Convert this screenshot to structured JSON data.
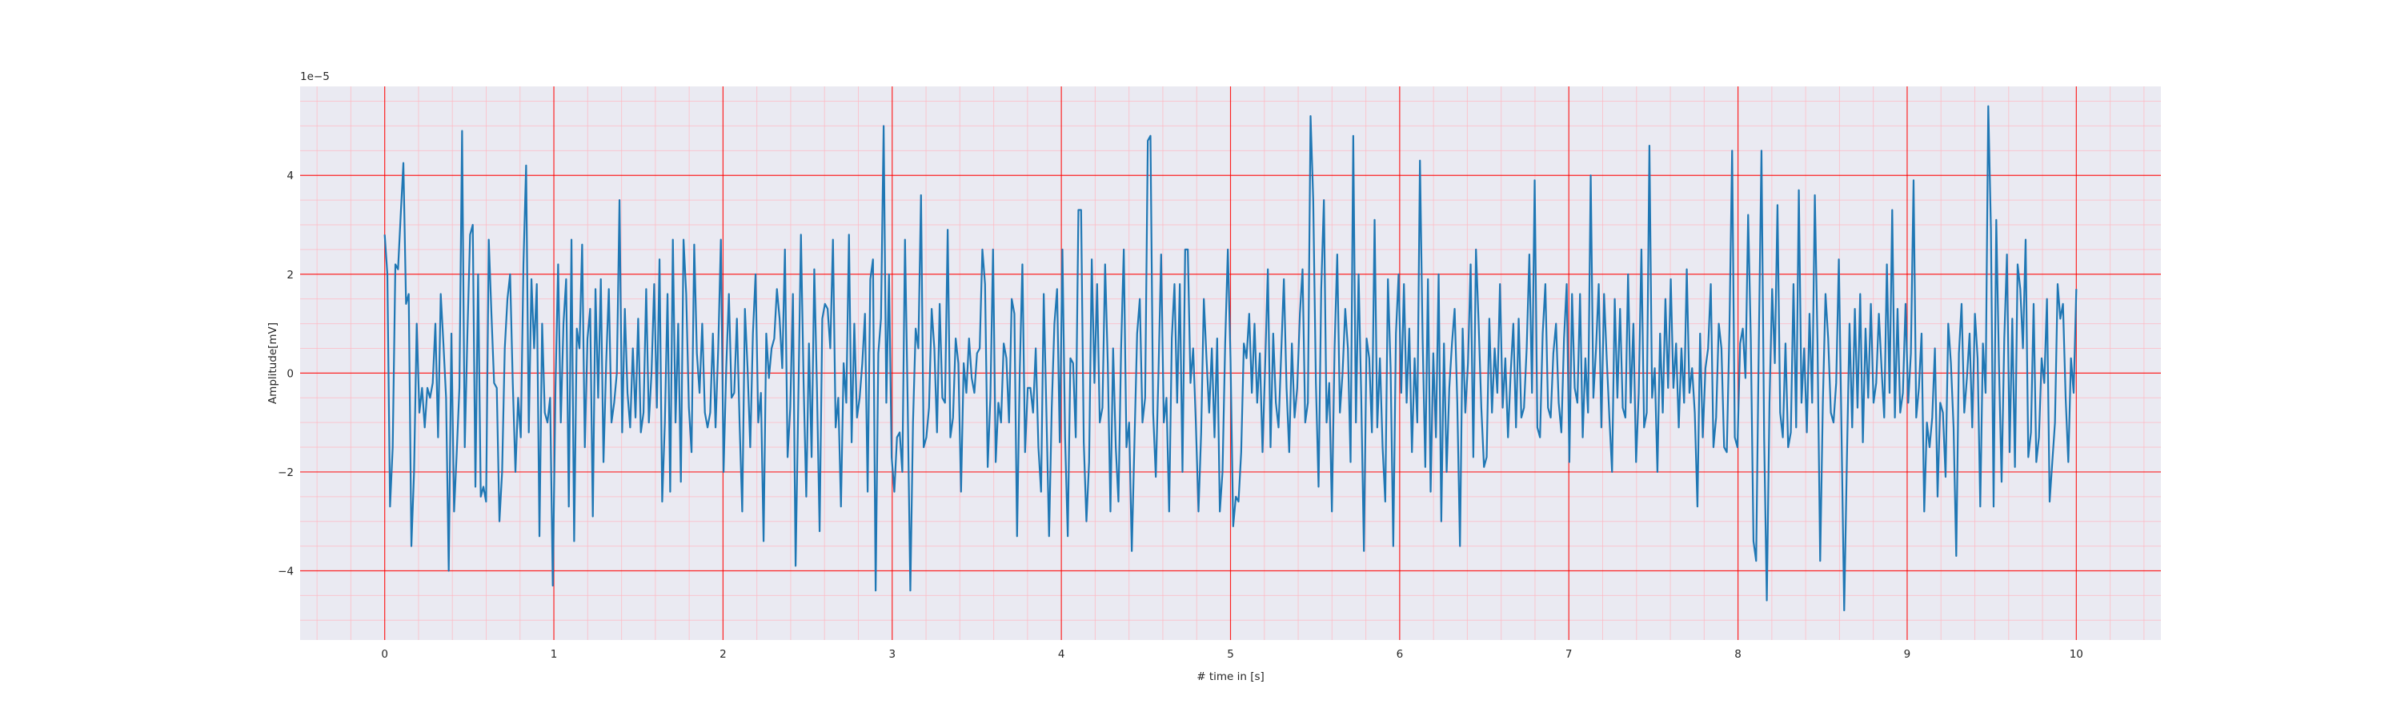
{
  "chart_data": {
    "type": "line",
    "title": "",
    "xlabel": "# time in [s]",
    "ylabel": "Amplitude[mV]",
    "y_scale_factor_label": "1e−5",
    "xlim": [
      -0.5,
      10.5
    ],
    "ylim": [
      -5.4e-05,
      5.8e-05
    ],
    "xticks": [
      0,
      1,
      2,
      3,
      4,
      5,
      6,
      7,
      8,
      9,
      10
    ],
    "xtick_labels": [
      "0",
      "1",
      "2",
      "3",
      "4",
      "5",
      "6",
      "7",
      "8",
      "9",
      "10"
    ],
    "yticks": [
      -4e-05,
      -2e-05,
      0,
      2e-05,
      4e-05
    ],
    "ytick_labels": [
      "−4",
      "−2",
      "0",
      "2",
      "4"
    ],
    "grid": "major and minor",
    "colors": {
      "plot_background": "#eaeaf2",
      "major_grid": "#ff0000",
      "minor_grid": "#ffb6c1",
      "line": "#1f77b4",
      "text": "#262626"
    },
    "series": [
      {
        "values_in_units_of_1e-5": [
          2.8,
          2.0,
          -2.7,
          -1.5,
          2.2,
          2.1,
          3.2,
          4.25,
          1.4,
          1.6,
          -3.5,
          -2.0,
          1.0,
          -0.8,
          -0.3,
          -1.1,
          -0.3,
          -0.5,
          -0.2,
          1.0,
          -1.3,
          1.6,
          0.6,
          -0.5,
          -4.0,
          0.8,
          -2.8,
          -1.6,
          -0.3,
          4.9,
          -1.5,
          0.8,
          2.8,
          3.0,
          -2.3,
          2.0,
          -2.5,
          -2.3,
          -2.6,
          2.7,
          1.2,
          -0.2,
          -0.3,
          -3.0,
          -2.0,
          0.5,
          1.5,
          2.0,
          -0.2,
          -2.0,
          -0.5,
          -1.3,
          2.2,
          4.2,
          -1.2,
          1.9,
          0.5,
          1.8,
          -3.3,
          1.0,
          -0.8,
          -1.0,
          -0.5,
          -4.3,
          -0.3,
          2.2,
          -1.0,
          1.0,
          1.9,
          -2.7,
          2.7,
          -3.4,
          0.9,
          0.5,
          2.6,
          -1.5,
          0.7,
          1.3,
          -2.9,
          1.7,
          -0.5,
          1.9,
          -1.8,
          0.2,
          1.7,
          -1.0,
          -0.6,
          0.0,
          3.5,
          -1.2,
          1.3,
          -0.4,
          -1.1,
          0.5,
          -0.9,
          1.1,
          -1.2,
          -0.8,
          1.7,
          -1.0,
          0.0,
          1.8,
          -0.7,
          2.3,
          -2.6,
          -1.0,
          1.6,
          -2.4,
          2.7,
          -1.0,
          1.0,
          -2.2,
          2.7,
          1.6,
          -0.7,
          -1.6,
          2.6,
          0.4,
          -0.4,
          1.0,
          -0.8,
          -1.1,
          -0.8,
          0.8,
          -1.1,
          0.5,
          2.7,
          -2.0,
          0.1,
          1.6,
          -0.5,
          -0.4,
          1.1,
          -1.0,
          -2.8,
          1.3,
          0.1,
          -1.5,
          0.8,
          2.0,
          -1.0,
          -0.4,
          -3.4,
          0.8,
          -0.1,
          0.5,
          0.7,
          1.7,
          1.1,
          0.1,
          2.5,
          -1.7,
          -0.7,
          1.6,
          -3.9,
          -0.6,
          2.8,
          -0.2,
          -2.5,
          0.6,
          -1.7,
          2.1,
          -0.3,
          -3.2,
          1.1,
          1.4,
          1.3,
          0.5,
          2.7,
          -1.1,
          -0.5,
          -2.7,
          0.2,
          -0.6,
          2.8,
          -1.4,
          1.0,
          -0.9,
          -0.5,
          0.2,
          1.2,
          -2.4,
          1.9,
          2.3,
          -4.4,
          0.4,
          1.1,
          5.0,
          -0.6,
          2.0,
          -1.7,
          -2.4,
          -1.3,
          -1.2,
          -2.0,
          2.7,
          -0.6,
          -4.4,
          -1.0,
          0.9,
          0.5,
          3.6,
          -1.5,
          -1.3,
          -0.7,
          1.3,
          0.5,
          -1.2,
          1.4,
          -0.5,
          -0.6,
          2.9,
          -1.3,
          -0.9,
          0.7,
          0.2,
          -2.4,
          0.2,
          -0.4,
          0.7,
          -0.1,
          -0.4,
          0.4,
          0.5,
          2.5,
          1.8,
          -1.9,
          -0.5,
          2.5,
          -1.8,
          -0.6,
          -1.0,
          0.6,
          0.3,
          -1.0,
          1.5,
          1.2,
          -3.3,
          0.0,
          2.2,
          -1.6,
          -0.3,
          -0.3,
          -0.8,
          0.5,
          -1.5,
          -2.4,
          1.6,
          -0.8,
          -3.3,
          -0.7,
          1.0,
          1.7,
          -1.4,
          2.5,
          -1.3,
          -3.3,
          0.3,
          0.2,
          -1.3,
          3.3,
          3.3,
          -1.4,
          -3.0,
          -1.8,
          2.3,
          -0.2,
          1.8,
          -1.0,
          -0.7,
          2.2,
          0.2,
          -2.8,
          0.5,
          -1.5,
          -2.6,
          0.5,
          2.5,
          -1.5,
          -1.0,
          -3.6,
          -1.4,
          0.8,
          1.5,
          -1.0,
          -0.5,
          4.7,
          4.8,
          -0.8,
          -2.1,
          0.0,
          2.4,
          -1.0,
          -0.5,
          -2.8,
          0.7,
          1.8,
          -0.6,
          1.8,
          -2.0,
          2.5,
          2.5,
          -0.2,
          0.5,
          -1.0,
          -2.8,
          -1.2,
          1.5,
          0.3,
          -0.8,
          0.5,
          -1.3,
          0.7,
          -2.8,
          -2.0,
          0.6,
          2.5,
          0.3,
          -3.1,
          -2.5,
          -2.6,
          -1.6,
          0.6,
          0.3,
          1.2,
          -0.4,
          1.0,
          -0.6,
          0.4,
          -1.6,
          0.2,
          2.1,
          -1.5,
          0.8,
          -0.6,
          -1.1,
          0.4,
          1.9,
          -0.3,
          -1.6,
          0.6,
          -0.9,
          -0.3,
          1.2,
          2.1,
          -1.0,
          -0.6,
          5.2,
          3.5,
          -0.2,
          -2.3,
          1.7,
          3.5,
          -1.0,
          -0.2,
          -2.8,
          0.5,
          2.4,
          -0.8,
          0.0,
          1.3,
          0.5,
          -1.8,
          4.8,
          -1.0,
          2.0,
          -0.5,
          -3.6,
          0.7,
          0.3,
          -1.2,
          3.1,
          -1.1,
          0.3,
          -1.5,
          -2.6,
          1.9,
          0.1,
          -3.5,
          0.8,
          2.0,
          -0.4,
          1.8,
          -0.6,
          0.9,
          -1.6,
          0.3,
          -1.0,
          4.3,
          0.7,
          -1.9,
          1.9,
          -2.4,
          0.4,
          -1.3,
          2.0,
          -3.0,
          0.6,
          -2.0,
          -0.3,
          0.6,
          1.3,
          -0.6,
          -3.5,
          0.9,
          -0.8,
          0.2,
          2.2,
          -1.7,
          2.5,
          1.0,
          -0.7,
          -1.9,
          -1.7,
          1.1,
          -0.8,
          0.5,
          -0.4,
          1.8,
          -0.7,
          0.3,
          -1.3,
          0.0,
          1.0,
          -1.1,
          1.1,
          -0.9,
          -0.7,
          0.5,
          2.4,
          -0.4,
          3.9,
          -1.1,
          -1.3,
          0.8,
          1.8,
          -0.7,
          -0.9,
          0.4,
          1.0,
          -0.6,
          -1.2,
          0.7,
          1.8,
          -1.8,
          1.6,
          -0.3,
          -0.6,
          1.6,
          -1.3,
          0.3,
          -0.8,
          4.0,
          -0.5,
          0.5,
          1.8,
          -1.1,
          1.6,
          0.3,
          -0.9,
          -2.0,
          1.5,
          -0.5,
          1.3,
          -0.7,
          -0.9,
          2.0,
          -0.6,
          1.0,
          -1.8,
          -0.4,
          2.5,
          -1.1,
          -0.8,
          4.6,
          -0.5,
          0.1,
          -2.0,
          0.8,
          -0.8,
          1.5,
          -0.3,
          1.9,
          -0.3,
          0.6,
          -1.1,
          0.5,
          -0.6,
          2.1,
          -0.4,
          0.1,
          -0.8,
          -2.7,
          0.8,
          -1.3,
          0.1,
          0.5,
          1.8,
          -1.5,
          -0.9,
          1.0,
          0.5,
          -1.5,
          -1.6,
          0.9,
          4.5,
          -1.3,
          -1.5,
          0.6,
          0.9,
          -0.1,
          3.2,
          0.7,
          -3.4,
          -3.8,
          0.6,
          4.5,
          -1.3,
          -4.6,
          -0.6,
          1.7,
          0.2,
          3.4,
          -0.8,
          -1.3,
          0.6,
          -1.5,
          -1.2,
          1.8,
          -1.1,
          3.7,
          -0.6,
          0.5,
          -1.2,
          1.2,
          -0.6,
          3.6,
          0.6,
          -3.8,
          -0.6,
          1.6,
          0.7,
          -0.8,
          -1.0,
          -0.2,
          2.3,
          -1.2,
          -4.8,
          -1.8,
          1.0,
          -1.1,
          1.3,
          -0.7,
          1.6,
          -1.4,
          0.9,
          -0.5,
          1.4,
          -0.6,
          -0.2,
          1.2,
          0.1,
          -0.9,
          2.2,
          -0.4,
          3.3,
          -0.9,
          1.3,
          -0.8,
          -0.4,
          1.4,
          -0.6,
          0.4,
          3.9,
          -0.9,
          -0.3,
          0.8,
          -2.8,
          -1.0,
          -1.5,
          -0.9,
          0.5,
          -2.5,
          -0.6,
          -0.8,
          -2.1,
          1.0,
          0.2,
          -1.1,
          -3.7,
          0.4,
          1.4,
          -0.8,
          -0.1,
          0.8,
          -1.1,
          1.2,
          0.3,
          -2.7,
          0.6,
          -0.4,
          5.4,
          2.9,
          -2.7,
          3.1,
          0.2,
          -2.2,
          0.7,
          2.4,
          -1.6,
          1.1,
          -1.9,
          2.2,
          1.7,
          0.5,
          2.7,
          -1.7,
          -1.2,
          1.4,
          -1.8,
          -1.3,
          0.3,
          -0.2,
          1.5,
          -2.6,
          -1.8,
          -1.0,
          1.8,
          1.1,
          1.4,
          -0.5,
          -1.8,
          0.3,
          -0.4,
          1.7
        ]
      }
    ]
  }
}
